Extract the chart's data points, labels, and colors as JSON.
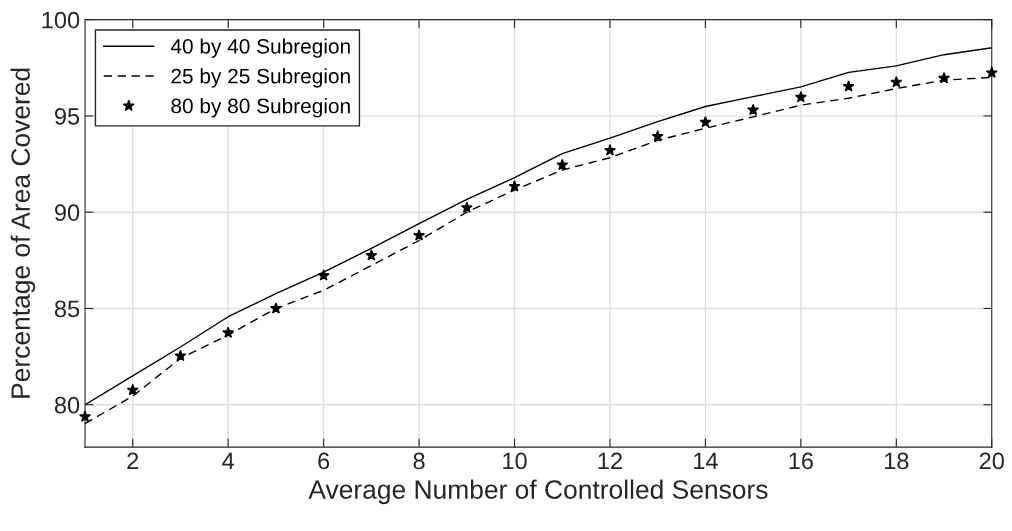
{
  "chart_data": {
    "type": "line",
    "xlabel": "Average Number of Controlled Sensors",
    "ylabel": "Percentage of Area Covered",
    "x": [
      1,
      2,
      3,
      4,
      5,
      6,
      7,
      8,
      9,
      10,
      11,
      12,
      13,
      14,
      15,
      16,
      17,
      18,
      19,
      20
    ],
    "series": [
      {
        "name": "40 by 40 Subregion",
        "color": "#000000",
        "line_style": "solid",
        "values": [
          80.0,
          81.5,
          83.0,
          84.57,
          85.77,
          86.89,
          88.12,
          89.41,
          90.66,
          91.79,
          93.04,
          93.85,
          94.7,
          95.49,
          96.0,
          96.51,
          97.26,
          97.6,
          98.18,
          98.54
        ]
      },
      {
        "name": "25 by 25 Subregion",
        "color": "#000000",
        "line_style": "dashed",
        "values": [
          79.02,
          80.45,
          82.41,
          83.62,
          85.0,
          85.94,
          87.23,
          88.53,
          90.0,
          91.15,
          92.19,
          92.83,
          93.73,
          94.36,
          94.95,
          95.56,
          95.92,
          96.42,
          96.86,
          97.0
        ]
      },
      {
        "name": "80 by 80 Subregion",
        "color": "#000000",
        "type": "scatter",
        "marker": "star",
        "values": [
          79.38,
          80.76,
          82.53,
          83.74,
          85.0,
          86.71,
          87.75,
          88.79,
          90.23,
          91.34,
          92.45,
          93.21,
          93.94,
          94.67,
          95.31,
          95.97,
          96.53,
          96.75,
          96.96,
          97.24
        ]
      }
    ],
    "xlim": [
      1,
      20
    ],
    "xticks": [
      2,
      4,
      6,
      8,
      10,
      12,
      14,
      16,
      18,
      20
    ],
    "ylim": [
      77.8,
      100
    ],
    "yticks": [
      80,
      85,
      90,
      95,
      100
    ],
    "grid": true,
    "legend": "top left"
  }
}
